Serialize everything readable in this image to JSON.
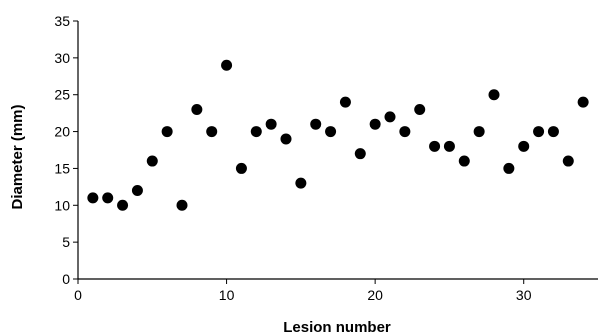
{
  "chart_data": {
    "type": "scatter",
    "title": "",
    "xlabel": "Lesion number",
    "ylabel": "Diameter (mm)",
    "xlim": [
      0,
      35
    ],
    "ylim": [
      0,
      35
    ],
    "xticks": [
      0,
      10,
      20,
      30
    ],
    "yticks": [
      0,
      5,
      10,
      15,
      20,
      25,
      30,
      35
    ],
    "grid": false,
    "legend": "none",
    "marker_color": "#000000",
    "series": [
      {
        "x": [
          1,
          2,
          3,
          4,
          5,
          6,
          7,
          8,
          9,
          10,
          11,
          12,
          13,
          14,
          15,
          16,
          17,
          18,
          19,
          20,
          21,
          22,
          23,
          24,
          25,
          26,
          27,
          28,
          29,
          30,
          31,
          32,
          33,
          34
        ],
        "y": [
          11,
          11,
          10,
          12,
          16,
          20,
          10,
          23,
          20,
          29,
          15,
          20,
          21,
          19,
          13,
          21,
          20,
          24,
          17,
          21,
          22,
          20,
          23,
          18,
          18,
          16,
          20,
          25,
          15,
          18,
          20,
          20,
          16,
          24
        ]
      }
    ]
  }
}
